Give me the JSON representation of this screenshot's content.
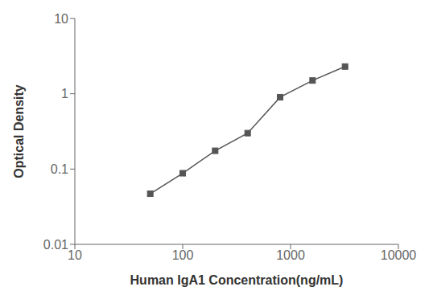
{
  "chart_data": {
    "type": "line",
    "xlabel": "Human IgA1 Concentration(ng/mL)",
    "ylabel": "Optical Density",
    "x": [
      50,
      100,
      200,
      400,
      800,
      1600,
      3200
    ],
    "values": [
      0.047,
      0.088,
      0.175,
      0.3,
      0.9,
      1.5,
      2.3
    ],
    "xlim": [
      10,
      10000
    ],
    "ylim": [
      0.01,
      10
    ],
    "xticks": [
      10,
      100,
      1000,
      10000
    ],
    "yticks": [
      0.01,
      0.1,
      1,
      10
    ],
    "log": true,
    "grid": false,
    "color": "#555555",
    "marker": "square"
  }
}
